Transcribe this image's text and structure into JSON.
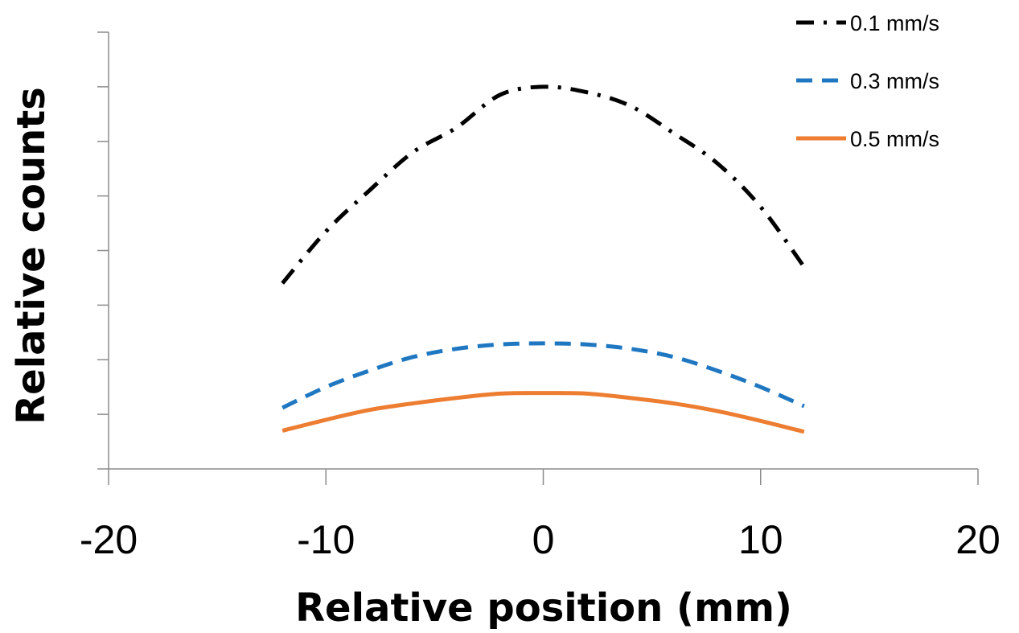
{
  "chart_data": {
    "type": "line",
    "xlabel": "Relative position (mm)",
    "ylabel": "Relative counts",
    "xlim": [
      -20,
      20
    ],
    "x_ticks": [
      "-20",
      "-10",
      "0",
      "10",
      "20"
    ],
    "y_tick_labels": "none",
    "ylim": [
      0,
      8
    ],
    "grid": false,
    "legend_position": "top-right",
    "series": [
      {
        "name": "0.1 mm/s",
        "color": "#000000",
        "line_style": "dash-dot",
        "x": [
          -12,
          -10,
          -8,
          -6,
          -4,
          -2,
          0,
          2,
          4,
          6,
          8,
          10,
          12
        ],
        "y": [
          3.4,
          4.35,
          5.1,
          5.8,
          6.25,
          6.85,
          7.0,
          6.9,
          6.65,
          6.15,
          5.6,
          4.8,
          3.7
        ]
      },
      {
        "name": "0.3 mm/s",
        "color": "#1f77c1",
        "line_style": "dashed",
        "x": [
          -12,
          -10,
          -8,
          -6,
          -4,
          -2,
          0,
          2,
          4,
          6,
          8,
          10,
          12
        ],
        "y": [
          1.12,
          1.5,
          1.8,
          2.05,
          2.2,
          2.28,
          2.3,
          2.28,
          2.2,
          2.05,
          1.8,
          1.5,
          1.15
        ]
      },
      {
        "name": "0.5 mm/s",
        "color": "#ed7d31",
        "line_style": "solid",
        "x": [
          -12,
          -10,
          -8,
          -6,
          -4,
          -2,
          0,
          2,
          4,
          6,
          8,
          10,
          12
        ],
        "y": [
          0.7,
          0.9,
          1.08,
          1.2,
          1.3,
          1.38,
          1.39,
          1.38,
          1.3,
          1.2,
          1.06,
          0.88,
          0.68
        ]
      }
    ]
  }
}
